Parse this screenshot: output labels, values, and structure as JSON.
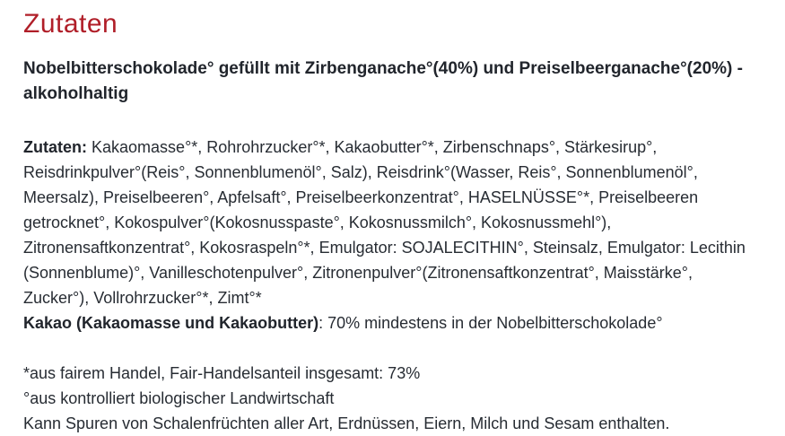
{
  "colors": {
    "accent_heading": "#b01e28",
    "body_text": "#272c33",
    "background": "#ffffff"
  },
  "section": {
    "title": "Zutaten"
  },
  "product": {
    "description": "Nobelbitterschokolade° gefüllt mit Zirbenganache°(40%) und Preiselbeerganache°(20%) - alkoholhaltig"
  },
  "ingredients": {
    "label": "Zutaten:",
    "list": "Kakaomasse°*, Rohrohrzucker°*, Kakaobutter°*, Zirbenschnaps°, Stärkesirup°, Reisdrinkpulver°(Reis°, Sonnenblumenöl°, Salz), Reisdrink°(Wasser, Reis°, Sonnenblumenöl°, Meersalz), Preiselbeeren°, Apfelsaft°, Preiselbeerkonzentrat°, HASELNÜSSE°*, Preiselbeeren getrocknet°, Kokospulver°(Kokosnusspaste°, Kokosnussmilch°, Kokosnussmehl°), Zitronensaftkonzentrat°, Kokosraspeln°*, Emulgator: SOJALECITHIN°, Steinsalz, Emulgator: Lecithin (Sonnenblume)°, Vanilleschotenpulver°, Zitronenpulver°(Zitronensaftkonzentrat°, Maisstärke°, Zucker°), Vollrohrzucker°*, Zimt°*",
    "cocoa_label": "Kakao (Kakaomasse und Kakaobutter)",
    "cocoa_value": ": 70% mindestens in der Nobelbitterschokolade°"
  },
  "footnotes": {
    "fairtrade": "*aus fairem Handel, Fair-Handelsanteil insgesamt: 73%",
    "organic": "°aus kontrolliert biologischer Landwirtschaft",
    "allergens": "Kann Spuren von Schalenfrüchten aller Art, Erdnüssen, Eiern, Milch und Sesam enthalten."
  }
}
